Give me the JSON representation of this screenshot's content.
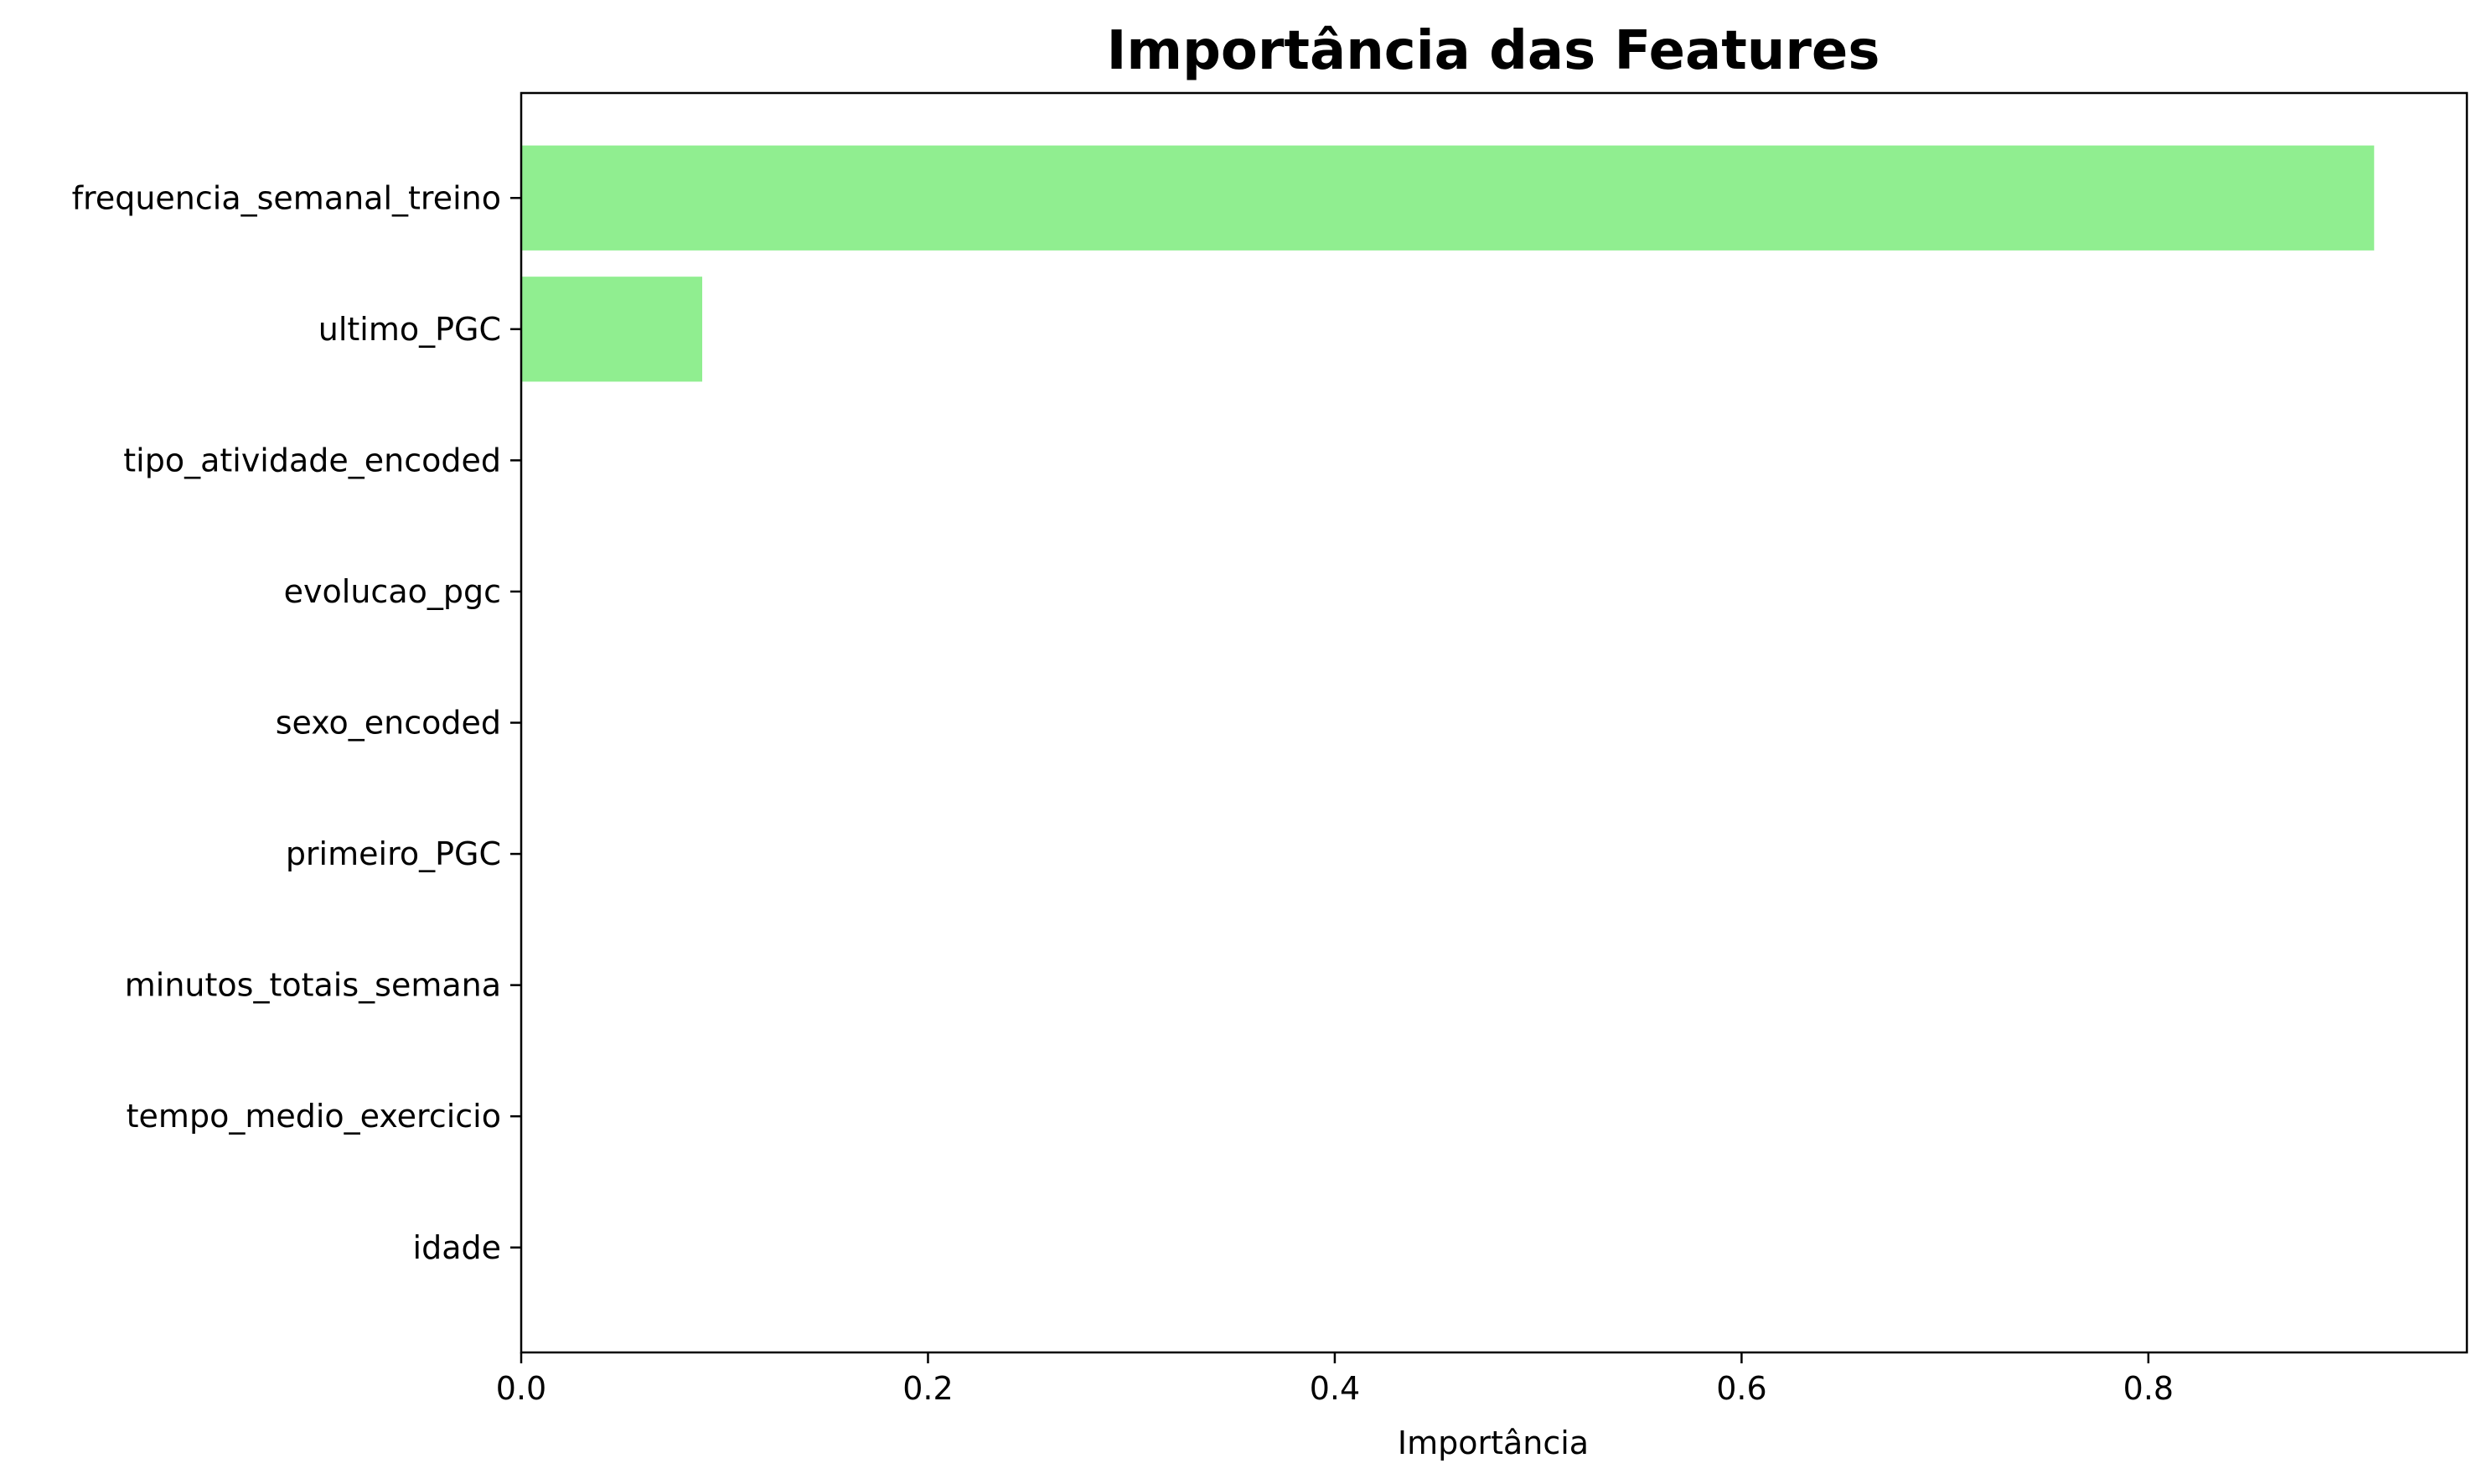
{
  "chart_data": {
    "type": "bar",
    "orientation": "horizontal",
    "title": "Importância das Features",
    "xlabel": "Importância",
    "ylabel": "",
    "categories": [
      "frequencia_semanal_treino",
      "ultimo_PGC",
      "tipo_atividade_encoded",
      "evolucao_pgc",
      "sexo_encoded",
      "primeiro_PGC",
      "minutos_totais_semana",
      "tempo_medio_exercicio",
      "idade"
    ],
    "values": [
      0.911,
      0.089,
      0,
      0,
      0,
      0,
      0,
      0,
      0
    ],
    "xlim": [
      0,
      0.9566
    ],
    "xticks": [
      0.0,
      0.2,
      0.4,
      0.6,
      0.8
    ],
    "xtick_labels": [
      "0.0",
      "0.2",
      "0.4",
      "0.6",
      "0.8"
    ],
    "bar_color": "#90ee90",
    "grid": false,
    "legend": "none"
  }
}
